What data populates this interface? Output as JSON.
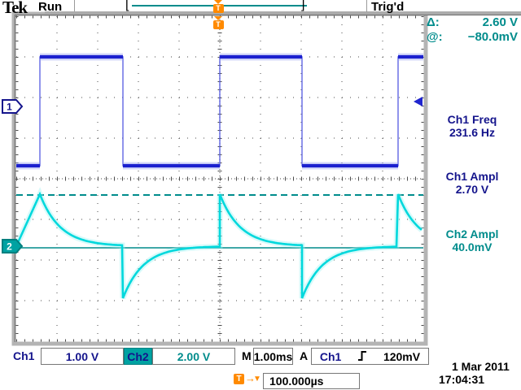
{
  "header": {
    "logo": "Tek",
    "acq_status": "Run",
    "trigger_status": "Trig'd",
    "record_bracket_left": "[",
    "record_bracket_right": "]",
    "trigger_marker": "T"
  },
  "right_panel": {
    "cursor_delta_label": "Δ:",
    "cursor_delta_value": "2.60 V",
    "cursor_at_label": "@:",
    "cursor_at_value": "−80.0mV",
    "measurements": [
      {
        "label": "Ch1 Freq",
        "value": "231.6 Hz",
        "color": "#14148c"
      },
      {
        "label": "Ch1 Ampl",
        "value": "2.70 V",
        "color": "#14148c"
      },
      {
        "label": "Ch2 Ampl",
        "value": "40.0mV",
        "color": "#008c8c"
      }
    ]
  },
  "channel_markers": {
    "ch1": "1",
    "ch2": "2"
  },
  "status_bar": {
    "ch1_label": "Ch1",
    "ch1_scale": "1.00 V",
    "ch2_label": "Ch2",
    "ch2_scale": "2.00 V",
    "timebase_label": "M",
    "timebase": "1.00ms",
    "trigger_group_label": "A",
    "trigger_source": "Ch1",
    "trigger_level": "120mV",
    "trigger_arrow": "→",
    "trigger_tri": "▼",
    "horizontal_delay": "100.000µs"
  },
  "footer": {
    "date": "1 Mar 2011",
    "time": "17:04:31"
  },
  "colors": {
    "accent_teal": "#008c8c",
    "navy_text": "#14148c",
    "ch1_trace": "#1b20cf",
    "ch1_halo": "#97a0f2",
    "ch2_trace": "#00d8dc",
    "ch2_halo": "#9ef2f2",
    "marker_orange": "#ff8a00",
    "trigger_arrow_blue": "#2025cf",
    "ch2_tab_bg": "#00a2a2"
  },
  "chart_data": {
    "type": "line",
    "title": "Oscilloscope display: Ch1 square wave and Ch2 differentiated pulses",
    "x_units": "ms",
    "time_per_div_ms": 1.0,
    "divisions_x": 10,
    "divisions_y": 8,
    "grid": "dotted",
    "trigger": {
      "source": "Ch1",
      "slope": "rising",
      "level": "120mV",
      "horizontal_delay": "100.000µs",
      "status": "Trig'd",
      "position_div_from_left": 5.0
    },
    "series": [
      {
        "name": "Ch1",
        "color": "#1b20cf",
        "volts_per_div": 1.0,
        "shape": "square",
        "ground_div_above_center": 1.78,
        "high_v": 1.22,
        "low_v": -1.46,
        "rising_edges_ms": [
          0.58,
          5.0,
          9.38
        ],
        "falling_edges_ms": [
          2.62,
          7.02
        ],
        "measured_freq_hz": 231.6,
        "measured_ampl_v": 2.7
      },
      {
        "name": "Ch2",
        "color": "#00d8dc",
        "volts_per_div": 2.0,
        "shape": "exp-decay-pulses",
        "ground_div_below_center": 1.66,
        "baseline_v": 0.0,
        "peak_v": 2.56,
        "trough_v": -2.56,
        "tau_ms": 0.5,
        "positive_pulses_ms": [
          0.58,
          5.0,
          9.38
        ],
        "negative_pulses_ms": [
          2.62,
          7.02
        ],
        "measured_ampl": "40.0mV"
      }
    ],
    "cursors": {
      "type": "voltage",
      "channel": "Ch2",
      "dashed_cursor_v": 2.52,
      "solid_cursor_v": -0.08,
      "delta": "2.60 V",
      "at": "−80.0mV"
    }
  }
}
